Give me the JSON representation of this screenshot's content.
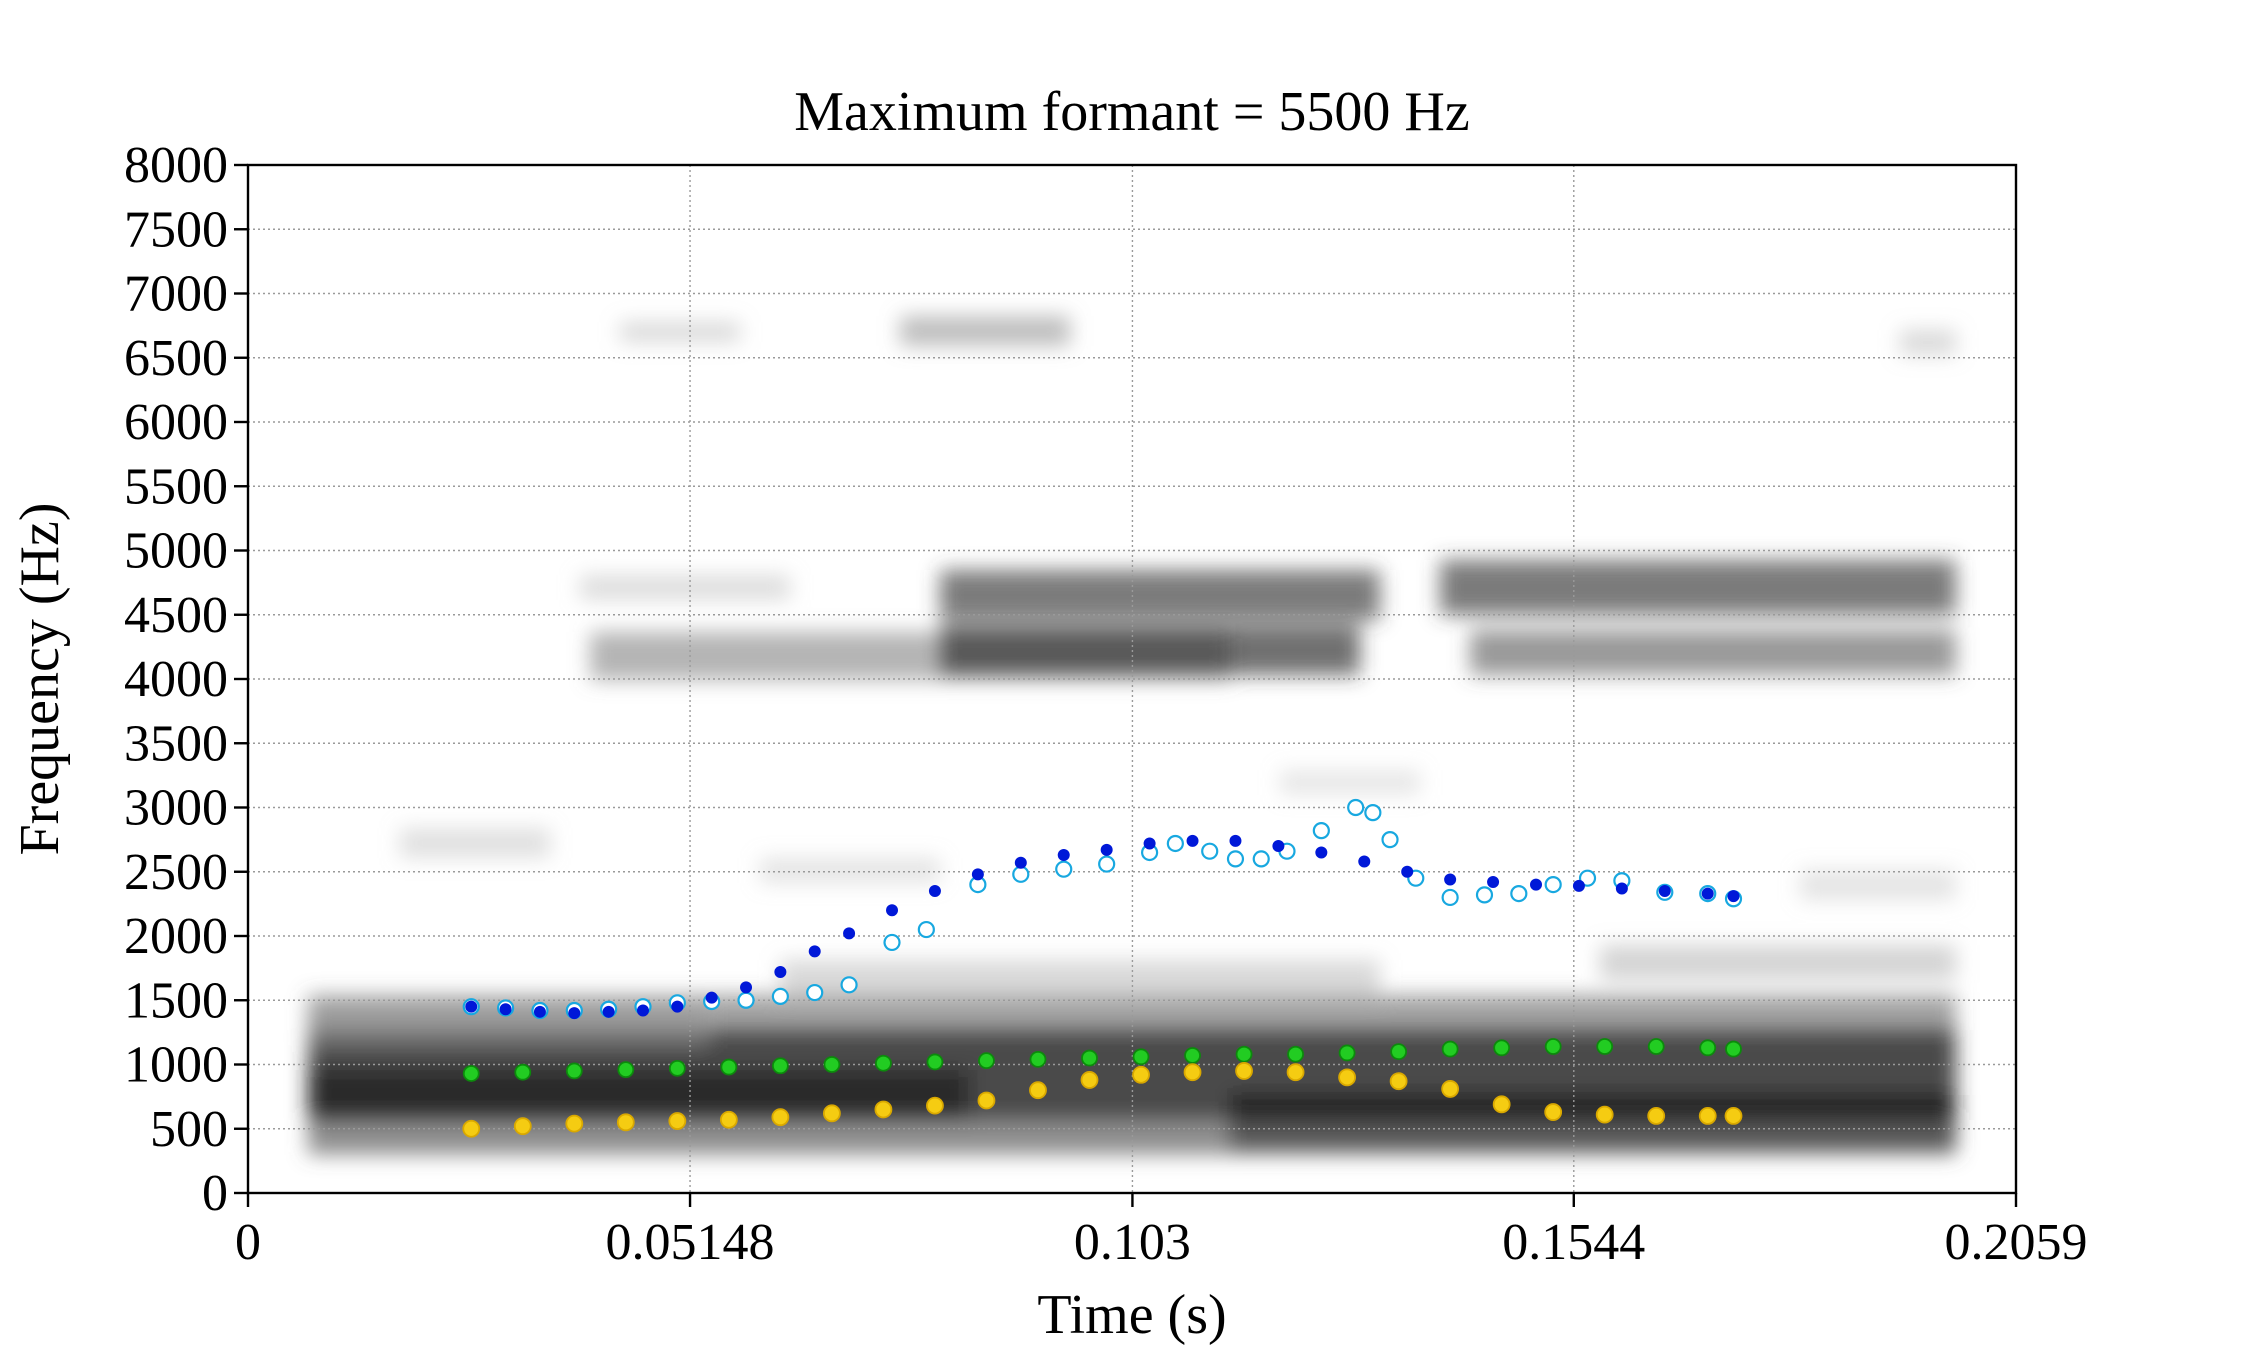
{
  "chart_data": {
    "type": "scatter",
    "title": "Maximum formant = 5500 Hz",
    "xlabel": "Time (s)",
    "ylabel": "Frequency (Hz)",
    "xlim": [
      0,
      0.2059
    ],
    "ylim": [
      0,
      8000
    ],
    "x_ticks": [
      "0",
      "0.05148",
      "0.103",
      "0.1544",
      "0.2059"
    ],
    "x_tick_values": [
      0,
      0.05148,
      0.103,
      0.1544,
      0.2059
    ],
    "y_ticks": [
      "0",
      "500",
      "1000",
      "1500",
      "2000",
      "2500",
      "3000",
      "3500",
      "4000",
      "4500",
      "5000",
      "5500",
      "6000",
      "6500",
      "7000",
      "7500",
      "8000"
    ],
    "y_tick_values": [
      0,
      500,
      1000,
      1500,
      2000,
      2500,
      3000,
      3500,
      4000,
      4500,
      5000,
      5500,
      6000,
      6500,
      7000,
      7500,
      8000
    ],
    "grid": true,
    "background": "grayscale spectrogram",
    "colors": {
      "f1_fill": "#f5cc12",
      "f1_stroke": "#d9a800",
      "f2_fill": "#22cc22",
      "f2_stroke": "#0c8a0c",
      "f3_fill": "#0018d8",
      "f3_open_stroke": "#18a8e0"
    },
    "series": [
      {
        "style": "open",
        "color": "#18a8e0",
        "x": [
          0.026,
          0.03,
          0.034,
          0.038,
          0.042,
          0.046,
          0.05,
          0.054,
          0.058,
          0.062,
          0.066,
          0.07,
          0.075,
          0.079,
          0.085,
          0.09,
          0.095,
          0.1,
          0.105,
          0.108,
          0.112,
          0.115,
          0.118,
          0.121,
          0.125,
          0.129,
          0.131,
          0.133,
          0.136,
          0.14,
          0.144,
          0.148,
          0.152,
          0.156,
          0.16,
          0.165,
          0.17,
          0.173
        ],
        "y": [
          1450,
          1440,
          1420,
          1420,
          1430,
          1450,
          1480,
          1490,
          1500,
          1530,
          1560,
          1620,
          1950,
          2050,
          2400,
          2480,
          2520,
          2560,
          2650,
          2720,
          2660,
          2600,
          2600,
          2660,
          2820,
          3000,
          2960,
          2750,
          2450,
          2300,
          2320,
          2330,
          2400,
          2450,
          2430,
          2340,
          2330,
          2290
        ]
      },
      {
        "style": "filled",
        "color": "#0018d8",
        "x": [
          0.026,
          0.03,
          0.034,
          0.038,
          0.042,
          0.046,
          0.05,
          0.054,
          0.058,
          0.062,
          0.066,
          0.07,
          0.075,
          0.08,
          0.085,
          0.09,
          0.095,
          0.1,
          0.105,
          0.11,
          0.115,
          0.12,
          0.125,
          0.13,
          0.135,
          0.14,
          0.145,
          0.15,
          0.155,
          0.16,
          0.165,
          0.17,
          0.173
        ],
        "y": [
          1450,
          1430,
          1410,
          1400,
          1410,
          1420,
          1450,
          1520,
          1600,
          1720,
          1880,
          2020,
          2200,
          2350,
          2480,
          2570,
          2630,
          2670,
          2720,
          2740,
          2740,
          2700,
          2650,
          2580,
          2500,
          2440,
          2420,
          2400,
          2390,
          2370,
          2350,
          2330,
          2310
        ]
      },
      {
        "style": "filled",
        "color": "#22cc22",
        "x": [
          0.026,
          0.032,
          0.038,
          0.044,
          0.05,
          0.056,
          0.062,
          0.068,
          0.074,
          0.08,
          0.086,
          0.092,
          0.098,
          0.104,
          0.11,
          0.116,
          0.122,
          0.128,
          0.134,
          0.14,
          0.146,
          0.152,
          0.158,
          0.164,
          0.17,
          0.173
        ],
        "y": [
          930,
          940,
          950,
          960,
          970,
          980,
          990,
          1000,
          1010,
          1020,
          1030,
          1040,
          1050,
          1060,
          1070,
          1080,
          1080,
          1090,
          1100,
          1120,
          1130,
          1140,
          1140,
          1140,
          1130,
          1120
        ]
      },
      {
        "style": "filled",
        "color": "#f5cc12",
        "x": [
          0.026,
          0.032,
          0.038,
          0.044,
          0.05,
          0.056,
          0.062,
          0.068,
          0.074,
          0.08,
          0.086,
          0.092,
          0.098,
          0.104,
          0.11,
          0.116,
          0.122,
          0.128,
          0.134,
          0.14,
          0.146,
          0.152,
          0.158,
          0.164,
          0.17,
          0.173
        ],
        "y": [
          500,
          520,
          540,
          550,
          560,
          570,
          590,
          620,
          650,
          680,
          720,
          800,
          880,
          920,
          940,
          950,
          940,
          900,
          870,
          810,
          690,
          630,
          610,
          600,
          600,
          600
        ]
      }
    ]
  }
}
